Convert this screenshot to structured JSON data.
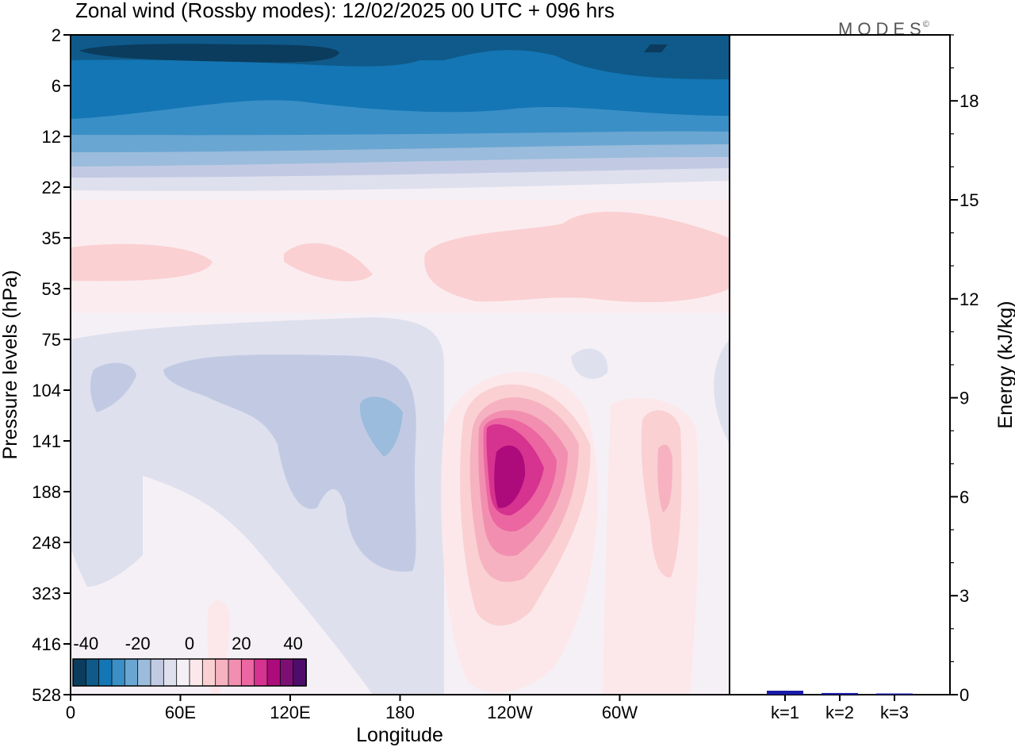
{
  "title": "Zonal wind (Rossby modes):  12/02/2025  00 UTC  + 096 hrs",
  "brand": "MODES",
  "brand_mark": "©",
  "colors": {
    "scale": [
      "#0b3c5d",
      "#0f5a8a",
      "#1476b4",
      "#3a8fc6",
      "#6aa6d2",
      "#9bbcdc",
      "#c2cae3",
      "#dfe0ee",
      "#f5f0f6",
      "#fce8ea",
      "#fad0d2",
      "#f6b2c0",
      "#f28fb0",
      "#ec66a2",
      "#d6328f",
      "#ad0b7c",
      "#7d0f74",
      "#4e0d6b"
    ],
    "bar": "#1a1aa8",
    "frame": "#000000"
  },
  "chart_data": [
    {
      "type": "heatmap",
      "title": "Zonal wind (Rossby modes):  12/02/2025  00 UTC  + 096 hrs",
      "xlabel": "Longitude",
      "ylabel": "Pressure levels (hPa)",
      "x_ticks": [
        "0",
        "60E",
        "120E",
        "180",
        "120W",
        "60W"
      ],
      "y_ticks": [
        "2",
        "6",
        "12",
        "22",
        "35",
        "53",
        "75",
        "104",
        "141",
        "188",
        "248",
        "323",
        "416",
        "528"
      ],
      "colorbar": {
        "ticks": [
          "-40",
          "-20",
          "0",
          "20",
          "40"
        ],
        "range": [
          -45,
          45
        ],
        "step": 5
      },
      "features": [
        {
          "description": "easterly jet upper levels",
          "longitude_range": [
            "0",
            "360"
          ],
          "pressure_range": [
            2,
            12
          ],
          "min_value": -45
        },
        {
          "description": "westerly maximum",
          "longitude": "120W",
          "pressure": 188,
          "max_value": 40
        },
        {
          "description": "secondary westerly maximum",
          "longitude": "60W",
          "pressure": 188,
          "max_value": 15
        }
      ]
    },
    {
      "type": "bar",
      "categories": [
        "k=1",
        "k=2",
        "k=3"
      ],
      "values": [
        0.12,
        0.05,
        0.03
      ],
      "ylabel": "Energy (kJ/kg)",
      "ylim": [
        0,
        20
      ],
      "y_ticks": [
        "0",
        "3",
        "6",
        "9",
        "12",
        "15",
        "18"
      ]
    }
  ]
}
